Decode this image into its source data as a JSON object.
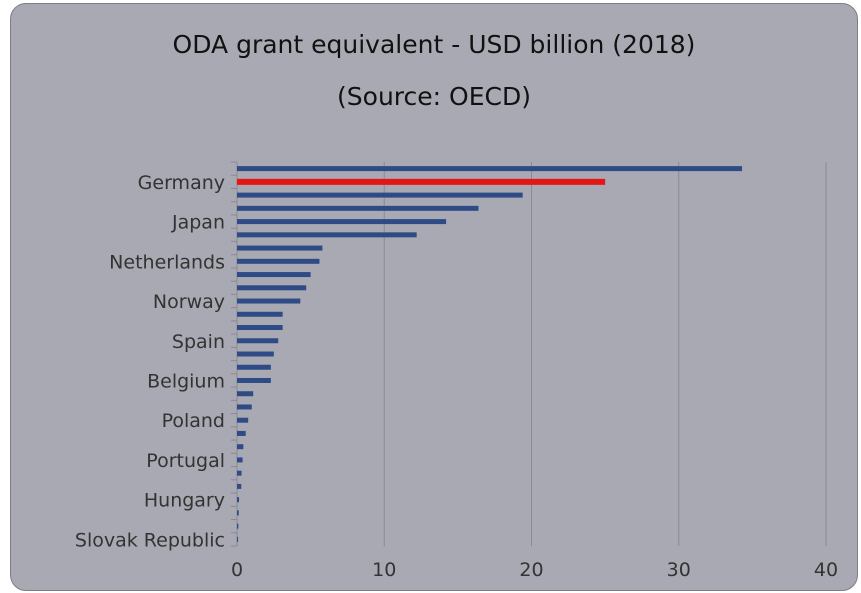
{
  "chart_data": {
    "type": "bar",
    "orientation": "horizontal",
    "title": "ODA grant equivalent - USD billion (2018)",
    "subtitle": "(Source: OECD)",
    "xlim": [
      0,
      40
    ],
    "xticks": [
      0,
      10,
      20,
      30,
      40
    ],
    "grid": true,
    "y_tick_labels": [
      "Germany",
      "Japan",
      "Netherlands",
      "Norway",
      "Spain",
      "Belgium",
      "Poland",
      "Portugal",
      "Hungary",
      "Slovak Republic"
    ],
    "categories": [
      "",
      "Germany",
      "",
      "",
      "Japan",
      "",
      "",
      "Netherlands",
      "",
      "",
      "Norway",
      "",
      "",
      "Spain",
      "",
      "",
      "Belgium",
      "",
      "",
      "Poland",
      "",
      "",
      "Portugal",
      "",
      "",
      "Hungary",
      "",
      "",
      "Slovak Republic"
    ],
    "values": [
      34.3,
      25.0,
      19.4,
      16.4,
      14.2,
      12.2,
      5.8,
      5.6,
      5.0,
      4.7,
      4.3,
      3.1,
      3.1,
      2.8,
      2.5,
      2.3,
      2.3,
      1.1,
      1.0,
      0.76,
      0.59,
      0.43,
      0.38,
      0.31,
      0.29,
      0.14,
      0.12,
      0.09,
      0.07
    ],
    "highlight_index": 1,
    "colors": {
      "bar": "#2f4b85",
      "highlight": "#e61515",
      "grid": "#8a8a92",
      "background": "#a9a9b3"
    }
  }
}
